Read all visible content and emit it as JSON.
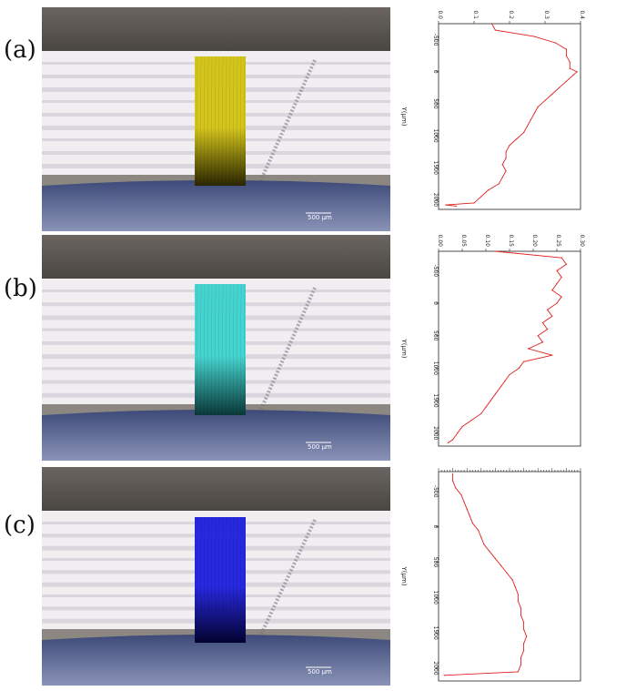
{
  "figure": {
    "panels": [
      {
        "label": "(a)",
        "stain_color": "#d4c51c",
        "stain_dark": "#2a2600",
        "scale_bar": "500 μm"
      },
      {
        "label": "(b)",
        "stain_color": "#46d4d0",
        "stain_dark": "#0a3838",
        "scale_bar": "500 μm"
      },
      {
        "label": "(c)",
        "stain_color": "#2828e0",
        "stain_dark": "#020230",
        "scale_bar": "500 μm"
      }
    ]
  },
  "chart_data": [
    {
      "type": "line",
      "ylabel": "Y(μm)",
      "xlim": [
        0.0,
        0.4
      ],
      "xticks": [
        "0.0",
        "0.1",
        "0.2",
        "0.3",
        "0.4"
      ],
      "ylim": [
        -750,
        2150
      ],
      "yticks": [
        "-500",
        "0",
        "500",
        "1000",
        "1500",
        "2000"
      ],
      "series": [
        {
          "color": "#e02020",
          "y": [
            -750,
            -650,
            -550,
            -450,
            -350,
            -250,
            -150,
            -50,
            0,
            50,
            150,
            250,
            350,
            450,
            550,
            650,
            750,
            850,
            950,
            1050,
            1150,
            1250,
            1350,
            1450,
            1550,
            1650,
            1750,
            1850,
            1950,
            2050,
            2080,
            2100
          ],
          "x": [
            0.15,
            0.16,
            0.27,
            0.33,
            0.36,
            0.36,
            0.37,
            0.37,
            0.39,
            0.38,
            0.36,
            0.34,
            0.32,
            0.3,
            0.28,
            0.27,
            0.26,
            0.25,
            0.24,
            0.22,
            0.2,
            0.19,
            0.19,
            0.18,
            0.19,
            0.18,
            0.17,
            0.14,
            0.12,
            0.1,
            0.02,
            0.05
          ]
        }
      ]
    },
    {
      "type": "line",
      "ylabel": "Y(μm)",
      "xlim": [
        0.0,
        0.3
      ],
      "xticks": [
        "0.00",
        "0.05",
        "0.10",
        "0.15",
        "0.20",
        "0.25",
        "0.30"
      ],
      "ylim": [
        -800,
        2200
      ],
      "yticks": [
        "-500",
        "0",
        "500",
        "1000",
        "1500",
        "2000"
      ],
      "series": [
        {
          "color": "#e02020",
          "y": [
            -800,
            -700,
            -600,
            -500,
            -400,
            -300,
            -200,
            -100,
            0,
            100,
            200,
            300,
            400,
            500,
            600,
            700,
            800,
            900,
            1000,
            1100,
            1200,
            1300,
            1400,
            1500,
            1600,
            1700,
            1800,
            1900,
            2000,
            2100,
            2150
          ],
          "x": [
            0.12,
            0.26,
            0.27,
            0.25,
            0.26,
            0.25,
            0.24,
            0.26,
            0.25,
            0.23,
            0.24,
            0.22,
            0.23,
            0.21,
            0.22,
            0.19,
            0.24,
            0.18,
            0.17,
            0.15,
            0.14,
            0.13,
            0.12,
            0.11,
            0.1,
            0.09,
            0.07,
            0.05,
            0.04,
            0.03,
            0.02
          ]
        }
      ]
    },
    {
      "type": "line",
      "ylabel": "Y(μm)",
      "xlim": [
        0.0,
        0.5
      ],
      "xticks": [],
      "ylim": [
        -780,
        2180
      ],
      "yticks": [
        "-500",
        "0",
        "500",
        "1000",
        "1500",
        "2000"
      ],
      "series": [
        {
          "color": "#e02020",
          "y": [
            -750,
            -650,
            -550,
            -450,
            -350,
            -250,
            -150,
            -50,
            50,
            150,
            250,
            350,
            450,
            550,
            650,
            750,
            850,
            950,
            1050,
            1150,
            1250,
            1350,
            1450,
            1550,
            1650,
            1750,
            1850,
            1950,
            2050,
            2100
          ],
          "x": [
            0.05,
            0.05,
            0.06,
            0.08,
            0.09,
            0.1,
            0.11,
            0.12,
            0.14,
            0.15,
            0.16,
            0.18,
            0.2,
            0.22,
            0.24,
            0.26,
            0.27,
            0.28,
            0.28,
            0.29,
            0.29,
            0.3,
            0.3,
            0.31,
            0.3,
            0.3,
            0.29,
            0.29,
            0.28,
            0.02
          ]
        }
      ]
    }
  ]
}
